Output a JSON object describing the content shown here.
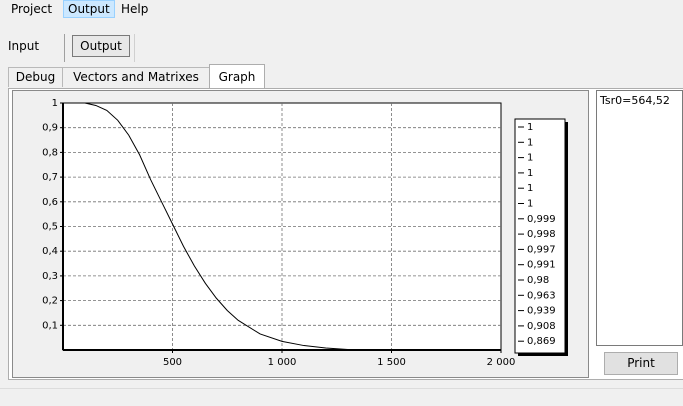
{
  "menu": {
    "items": [
      {
        "label": "Project"
      },
      {
        "label": "Output"
      },
      {
        "label": "Help"
      }
    ]
  },
  "view_tabs": {
    "input_label": "Input",
    "output_label": "Output"
  },
  "output_tabs": [
    {
      "label": "Debug"
    },
    {
      "label": "Vectors and Matrixes"
    },
    {
      "label": "Graph"
    }
  ],
  "side_panel": {
    "text": "Tsr0=564,52",
    "print_label": "Print"
  },
  "chart_data": {
    "type": "line",
    "xlim": [
      0,
      2000
    ],
    "ylim": [
      0,
      1
    ],
    "grid": true,
    "x_ticks": [
      {
        "v": 500,
        "label": "500"
      },
      {
        "v": 1000,
        "label": "1 000"
      },
      {
        "v": 1500,
        "label": "1 500"
      },
      {
        "v": 2000,
        "label": "2 000"
      }
    ],
    "y_ticks": [
      {
        "v": 0.1,
        "label": "0,1"
      },
      {
        "v": 0.2,
        "label": "0,2"
      },
      {
        "v": 0.3,
        "label": "0,3"
      },
      {
        "v": 0.4,
        "label": "0,4"
      },
      {
        "v": 0.5,
        "label": "0,5"
      },
      {
        "v": 0.6,
        "label": "0,6"
      },
      {
        "v": 0.7,
        "label": "0,7"
      },
      {
        "v": 0.8,
        "label": "0,8"
      },
      {
        "v": 0.9,
        "label": "0,9"
      },
      {
        "v": 1,
        "label": "1"
      }
    ],
    "series": [
      {
        "x": [
          100,
          150,
          200,
          250,
          300,
          350,
          400,
          450,
          500,
          550,
          600,
          650,
          700,
          750,
          800,
          900,
          1000,
          1100,
          1200,
          1300,
          1320
        ],
        "y": [
          1.0,
          0.99,
          0.97,
          0.93,
          0.87,
          0.79,
          0.69,
          0.6,
          0.51,
          0.42,
          0.34,
          0.27,
          0.21,
          0.16,
          0.12,
          0.065,
          0.035,
          0.018,
          0.008,
          0.002,
          0.0
        ]
      }
    ],
    "legend_entries": [
      "1",
      "1",
      "1",
      "1",
      "1",
      "1",
      "0,999",
      "0,998",
      "0,997",
      "0,991",
      "0,98",
      "0,963",
      "0,939",
      "0,908",
      "0,869"
    ],
    "legend_position": "right"
  }
}
